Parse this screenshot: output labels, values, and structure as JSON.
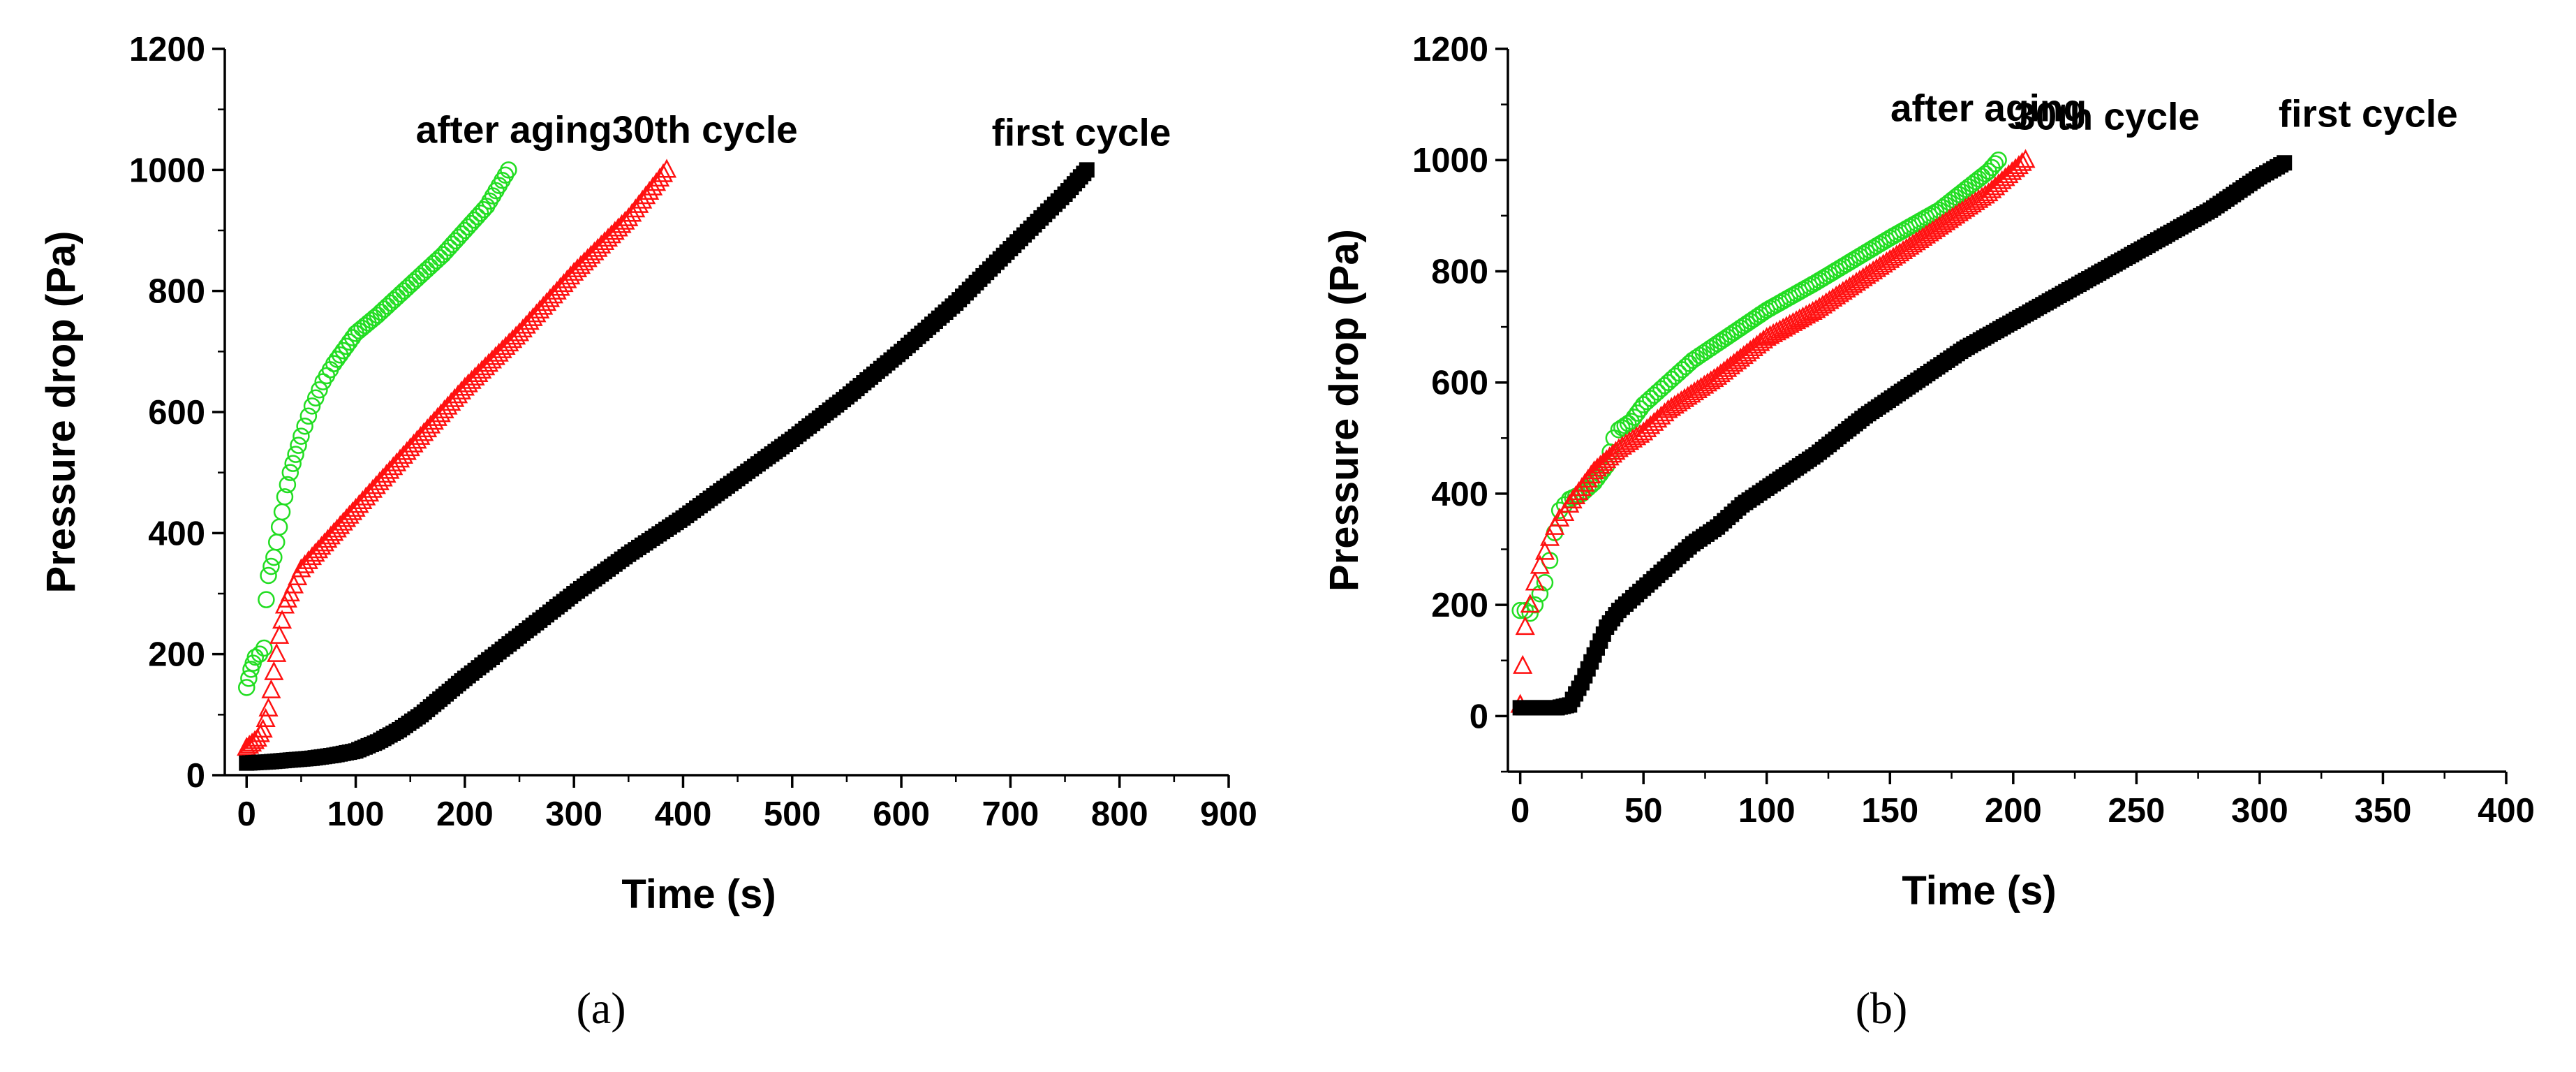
{
  "chart_data": [
    {
      "type": "scatter",
      "panel_label": "(a)",
      "xlabel": "Time (s)",
      "ylabel": "Pressure drop (Pa)",
      "xlim": [
        -20,
        900
      ],
      "ylim": [
        0,
        1200
      ],
      "xticks": [
        0,
        100,
        200,
        300,
        400,
        500,
        600,
        700,
        800,
        900
      ],
      "yticks": [
        0,
        200,
        400,
        600,
        800,
        1000,
        1200
      ],
      "annotations": [
        {
          "text": "after aging",
          "x": 245,
          "y": 1045
        },
        {
          "text": "30th cycle",
          "x": 420,
          "y": 1045
        },
        {
          "text": "first cycle",
          "x": 765,
          "y": 1040
        }
      ],
      "series": [
        {
          "name": "after aging",
          "marker": "circle",
          "color": "#22dd22",
          "x": [
            0,
            2,
            4,
            6,
            8,
            12,
            16,
            18,
            20,
            25,
            30,
            35,
            40,
            45,
            50,
            60,
            70,
            80,
            100,
            120,
            150,
            180,
            200,
            220,
            240
          ],
          "y": [
            145,
            160,
            175,
            185,
            195,
            200,
            210,
            290,
            330,
            360,
            410,
            460,
            500,
            530,
            560,
            610,
            650,
            680,
            730,
            760,
            810,
            860,
            900,
            940,
            1000
          ]
        },
        {
          "name": "30th cycle",
          "marker": "triangle",
          "color": "#ff1111",
          "x": [
            0,
            5,
            10,
            15,
            20,
            25,
            30,
            35,
            40,
            50,
            60,
            80,
            100,
            150,
            200,
            250,
            300,
            350,
            385
          ],
          "y": [
            45,
            52,
            60,
            75,
            110,
            170,
            230,
            280,
            300,
            340,
            360,
            400,
            440,
            540,
            640,
            730,
            830,
            920,
            1000
          ]
        },
        {
          "name": "first cycle",
          "marker": "square",
          "color": "#000000",
          "x": [
            0,
            20,
            40,
            60,
            80,
            100,
            120,
            140,
            160,
            180,
            200,
            250,
            300,
            350,
            400,
            450,
            500,
            550,
            600,
            650,
            700,
            750,
            770
          ],
          "y": [
            20,
            22,
            25,
            28,
            33,
            40,
            55,
            75,
            100,
            130,
            160,
            230,
            300,
            365,
            425,
            490,
            555,
            625,
            700,
            780,
            870,
            960,
            1000
          ]
        }
      ]
    },
    {
      "type": "scatter",
      "panel_label": "(b)",
      "xlabel": "Time (s)",
      "ylabel": "Pressure drop (Pa)",
      "xlim": [
        -5,
        400
      ],
      "ylim": [
        -100,
        1200
      ],
      "xticks": [
        0,
        50,
        100,
        150,
        200,
        250,
        300,
        350,
        400
      ],
      "yticks": [
        0,
        200,
        400,
        600,
        800,
        1000,
        1200
      ],
      "annotations": [
        {
          "text": "after aging",
          "x": 190,
          "y": 1070
        },
        {
          "text": "30th cycle",
          "x": 238,
          "y": 1055
        },
        {
          "text": "first cycle",
          "x": 344,
          "y": 1060
        }
      ],
      "series": [
        {
          "name": "after aging",
          "marker": "circle",
          "color": "#22dd22",
          "x": [
            0,
            2,
            4,
            6,
            8,
            10,
            12,
            14,
            16,
            18,
            20,
            25,
            30,
            35,
            38,
            40,
            45,
            50,
            60,
            70,
            80,
            100,
            120,
            150,
            170,
            190,
            194
          ],
          "y": [
            190,
            190,
            185,
            200,
            220,
            240,
            280,
            330,
            370,
            380,
            390,
            400,
            420,
            450,
            500,
            515,
            530,
            560,
            600,
            640,
            670,
            730,
            780,
            860,
            910,
            980,
            1000
          ]
        },
        {
          "name": "30th cycle",
          "marker": "triangle",
          "color": "#ff1111",
          "x": [
            0,
            1,
            2,
            4,
            6,
            8,
            10,
            12,
            14,
            16,
            18,
            20,
            25,
            30,
            35,
            40,
            50,
            60,
            80,
            100,
            120,
            150,
            170,
            190,
            205
          ],
          "y": [
            20,
            90,
            160,
            200,
            240,
            270,
            295,
            320,
            340,
            355,
            365,
            380,
            410,
            440,
            460,
            480,
            510,
            550,
            610,
            680,
            730,
            820,
            880,
            940,
            1000
          ]
        },
        {
          "name": "first cycle",
          "marker": "square",
          "color": "#000000",
          "x": [
            0,
            5,
            10,
            15,
            20,
            25,
            30,
            35,
            40,
            50,
            60,
            70,
            80,
            90,
            100,
            120,
            140,
            160,
            180,
            200,
            220,
            240,
            260,
            280,
            300,
            310
          ],
          "y": [
            15,
            15,
            15,
            15,
            20,
            60,
            110,
            160,
            190,
            230,
            270,
            310,
            340,
            380,
            410,
            470,
            540,
            600,
            660,
            710,
            760,
            810,
            860,
            910,
            970,
            995
          ]
        }
      ]
    }
  ]
}
